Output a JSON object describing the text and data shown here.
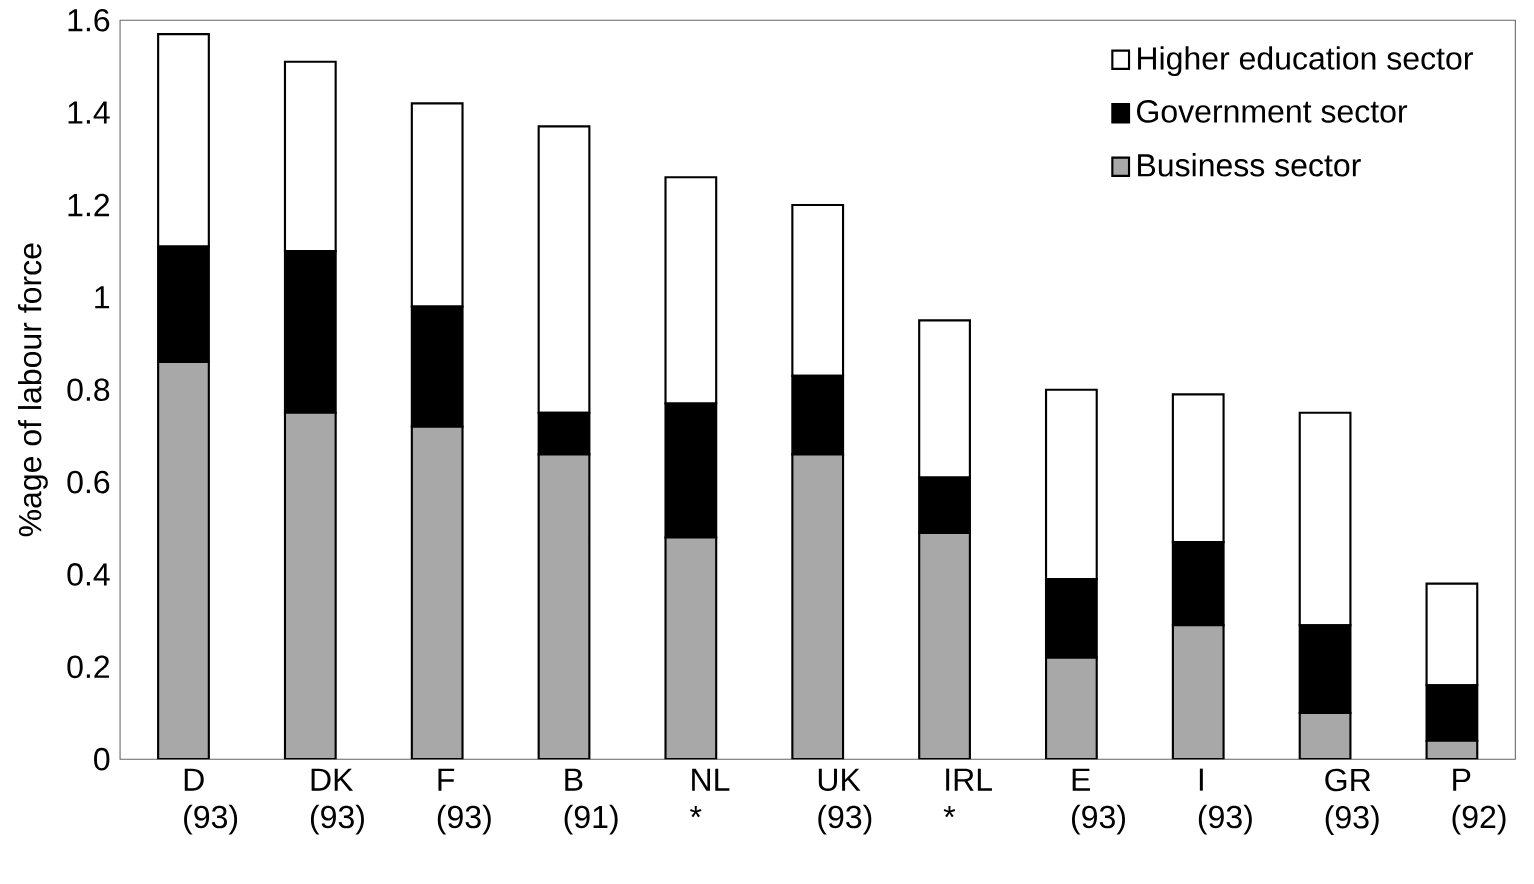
{
  "chart_data": {
    "type": "bar",
    "stacked": true,
    "ylabel": "%age of labour force",
    "categories": [
      "D (93)",
      "DK (93)",
      "F (93)",
      "B (91)",
      "NL *",
      "UK (93)",
      "IRL *",
      "E (93)",
      "I (93)",
      "GR (93)",
      "P (92)"
    ],
    "series": [
      {
        "name": "Business sector",
        "color": "#a8a8a8",
        "values": [
          0.86,
          0.75,
          0.72,
          0.66,
          0.48,
          0.66,
          0.49,
          0.22,
          0.29,
          0.1,
          0.04
        ]
      },
      {
        "name": "Government sector",
        "color": "#000000",
        "values": [
          0.25,
          0.35,
          0.26,
          0.09,
          0.29,
          0.17,
          0.12,
          0.17,
          0.18,
          0.19,
          0.12
        ]
      },
      {
        "name": "Higher education sector",
        "color": "#ffffff",
        "values": [
          0.46,
          0.41,
          0.44,
          0.62,
          0.49,
          0.37,
          0.34,
          0.41,
          0.32,
          0.46,
          0.22
        ]
      }
    ],
    "ylim": [
      0,
      1.6
    ],
    "yticks": [
      0,
      0.2,
      0.4,
      0.6,
      0.8,
      1,
      1.2,
      1.4,
      1.6
    ],
    "legend": "top right"
  }
}
